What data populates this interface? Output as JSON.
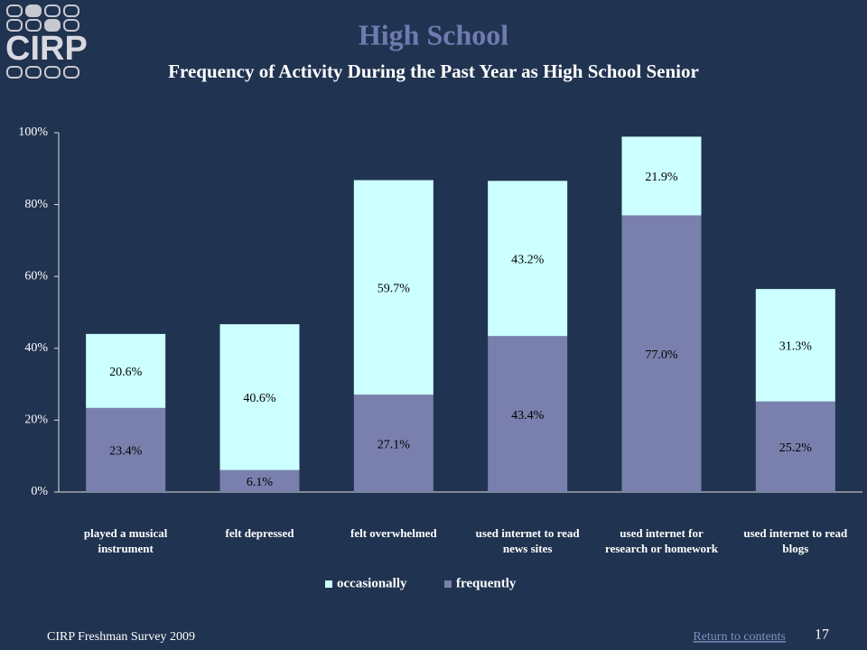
{
  "logo": {
    "text": "CIRP"
  },
  "chart_data": {
    "type": "stacked_bar",
    "title": "High School",
    "subtitle": "Frequency of Activity During the Past Year as High School Senior",
    "categories": [
      "played a musical instrument",
      "felt depressed",
      "felt overwhelmed",
      "used internet to read news sites",
      "used internet for research or homework",
      "used internet to read blogs"
    ],
    "series": [
      {
        "name": "occasionally",
        "color": "#ccffff",
        "values": [
          20.6,
          40.6,
          59.7,
          43.2,
          21.9,
          31.3
        ],
        "value_labels": [
          "20.6%",
          "40.6%",
          "59.7%",
          "43.2%",
          "21.9%",
          "31.3%"
        ]
      },
      {
        "name": "frequently",
        "color": "#7a80ad",
        "values": [
          23.4,
          6.1,
          27.1,
          43.4,
          77.0,
          25.2
        ],
        "value_labels": [
          "23.4%",
          "6.1%",
          "27.1%",
          "43.4%",
          "77.0%",
          "25.2%"
        ]
      }
    ],
    "ylim": [
      0,
      100
    ],
    "yticks": [
      {
        "value": 0,
        "label": "0%"
      },
      {
        "value": 20,
        "label": "20%"
      },
      {
        "value": 40,
        "label": "40%"
      },
      {
        "value": 60,
        "label": "60%"
      },
      {
        "value": 80,
        "label": "80%"
      },
      {
        "value": 100,
        "label": "100%"
      }
    ],
    "legend": "bottom"
  },
  "footer": {
    "source": "CIRP Freshman Survey 2009",
    "link": "Return to contents",
    "page_number": "17"
  }
}
